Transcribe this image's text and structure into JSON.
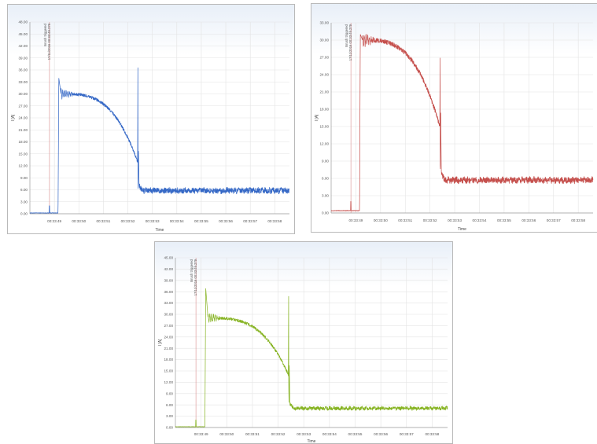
{
  "charts": [
    {
      "type": "line",
      "series_color": "#3568c6",
      "ylabel": "I [A]",
      "xlabel": "Time",
      "ylim": [
        0,
        48
      ],
      "y_ticks": [
        "0.00",
        "3.00",
        "6.00",
        "9.00",
        "12.00",
        "15.00",
        "18.00",
        "21.00",
        "24.00",
        "27.00",
        "30.00",
        "33.00",
        "36.00",
        "39.00",
        "42.00",
        "45.00",
        "48.00"
      ],
      "x_ticks": [
        "00:33:49",
        "00:33:50",
        "00:33:51",
        "00:33:52",
        "00:33:53",
        "00:33:54",
        "00:33:55",
        "00:33:56",
        "00:33:57",
        "00:33:58"
      ],
      "xlim": [
        0,
        10.6
      ],
      "trigger_label": "Inrush triggered",
      "trigger_time": "17/11/2016 00:33:49.279",
      "trigger_x": 0.8,
      "curve": {
        "start": 1.15,
        "peak": 34,
        "plateau": 30,
        "knee_time": 4.4,
        "knee_value": 13,
        "transient_peak": 41,
        "dip": 1,
        "steady": 5.8,
        "jitter": 0.7,
        "baseline": 0.2
      }
    },
    {
      "type": "line",
      "series_color": "#c54f4c",
      "ylabel": "I [A]",
      "xlabel": "Time",
      "ylim": [
        0,
        33
      ],
      "y_ticks": [
        "0.00",
        "3.00",
        "6.00",
        "9.00",
        "12.00",
        "15.00",
        "18.00",
        "21.00",
        "24.00",
        "27.00",
        "30.00",
        "33.00"
      ],
      "x_ticks": [
        "00:33:49",
        "00:33:50",
        "00:33:51",
        "00:33:52",
        "00:33:53",
        "00:33:54",
        "00:33:55",
        "00:33:56",
        "00:33:57",
        "00:33:58"
      ],
      "xlim": [
        0,
        10.6
      ],
      "trigger_label": "Inrush triggered",
      "trigger_time": "17/11/2016 00:33:49.279",
      "trigger_x": 0.8,
      "curve": {
        "start": 1.15,
        "peak": 31,
        "plateau": 30,
        "knee_time": 4.4,
        "knee_value": 15,
        "transient_peak": 30,
        "dip": 2,
        "steady": 5.7,
        "jitter": 0.5,
        "baseline": 0.4
      }
    },
    {
      "type": "line",
      "series_color": "#86b322",
      "ylabel": "I [A]",
      "xlabel": "Time",
      "ylim": [
        0,
        45
      ],
      "y_ticks": [
        "0.00",
        "3.00",
        "6.00",
        "9.00",
        "12.00",
        "15.00",
        "18.00",
        "21.00",
        "24.00",
        "27.00",
        "30.00",
        "33.00",
        "36.00",
        "39.00",
        "42.00",
        "45.00"
      ],
      "x_ticks": [
        "00:33:49",
        "00:33:50",
        "00:33:51",
        "00:33:52",
        "00:33:53",
        "00:33:54",
        "00:33:55",
        "00:33:56",
        "00:33:57",
        "00:33:58"
      ],
      "xlim": [
        0,
        10.6
      ],
      "trigger_label": "Inrush triggered",
      "trigger_time": "17/11/2016 00:33:49.279",
      "trigger_x": 0.8,
      "curve": {
        "start": 1.15,
        "peak": 37,
        "plateau": 29,
        "knee_time": 4.4,
        "knee_value": 14,
        "transient_peak": 39,
        "dip": 1,
        "steady": 5.1,
        "jitter": 0.45,
        "baseline": 0.2
      }
    }
  ]
}
